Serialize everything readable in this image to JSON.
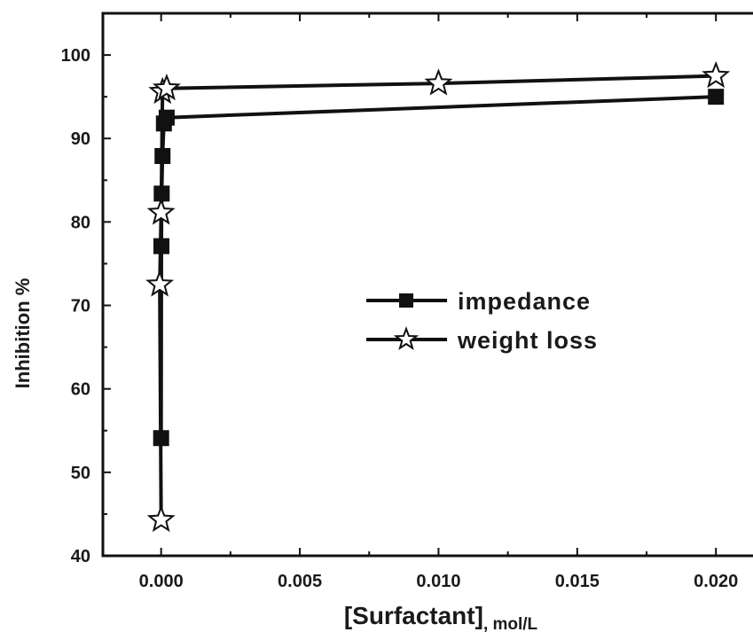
{
  "chart_data": {
    "type": "line",
    "title": "",
    "xlabel": "[Surfactant]",
    "xlabel_unit": ", mol/L",
    "ylabel": "Inhibition %",
    "xlim": [
      -0.0021,
      0.0222
    ],
    "ylim": [
      40,
      105
    ],
    "xticks": [
      0.0,
      0.005,
      0.01,
      0.015,
      0.02
    ],
    "xtick_labels": [
      "0.000",
      "0.005",
      "0.010",
      "0.015",
      "0.020"
    ],
    "yticks": [
      40,
      50,
      60,
      70,
      80,
      90,
      100
    ],
    "ytick_labels": [
      "40",
      "50",
      "60",
      "70",
      "80",
      "90",
      "100"
    ],
    "grid": false,
    "legend_position": "center-right",
    "series": [
      {
        "name": "impedance",
        "marker": "square",
        "color": "#111111",
        "points": [
          {
            "x": 0.0,
            "y": 54.1
          },
          {
            "x": 1e-05,
            "y": 77.1
          },
          {
            "x": 2e-05,
            "y": 83.4
          },
          {
            "x": 5e-05,
            "y": 87.9
          },
          {
            "x": 0.0001,
            "y": 91.8
          },
          {
            "x": 0.0002,
            "y": 92.5
          },
          {
            "x": 0.02,
            "y": 95.0
          }
        ]
      },
      {
        "name": "weight loss",
        "marker": "star",
        "color": "#111111",
        "points": [
          {
            "x": 0.0,
            "y": 44.3
          },
          {
            "x": -5e-05,
            "y": 72.5
          },
          {
            "x": 0.0,
            "y": 81.1
          },
          {
            "x": 5e-05,
            "y": 95.6
          },
          {
            "x": 0.0002,
            "y": 96.0
          },
          {
            "x": 0.01,
            "y": 96.6
          },
          {
            "x": 0.02,
            "y": 97.5
          }
        ]
      }
    ]
  }
}
